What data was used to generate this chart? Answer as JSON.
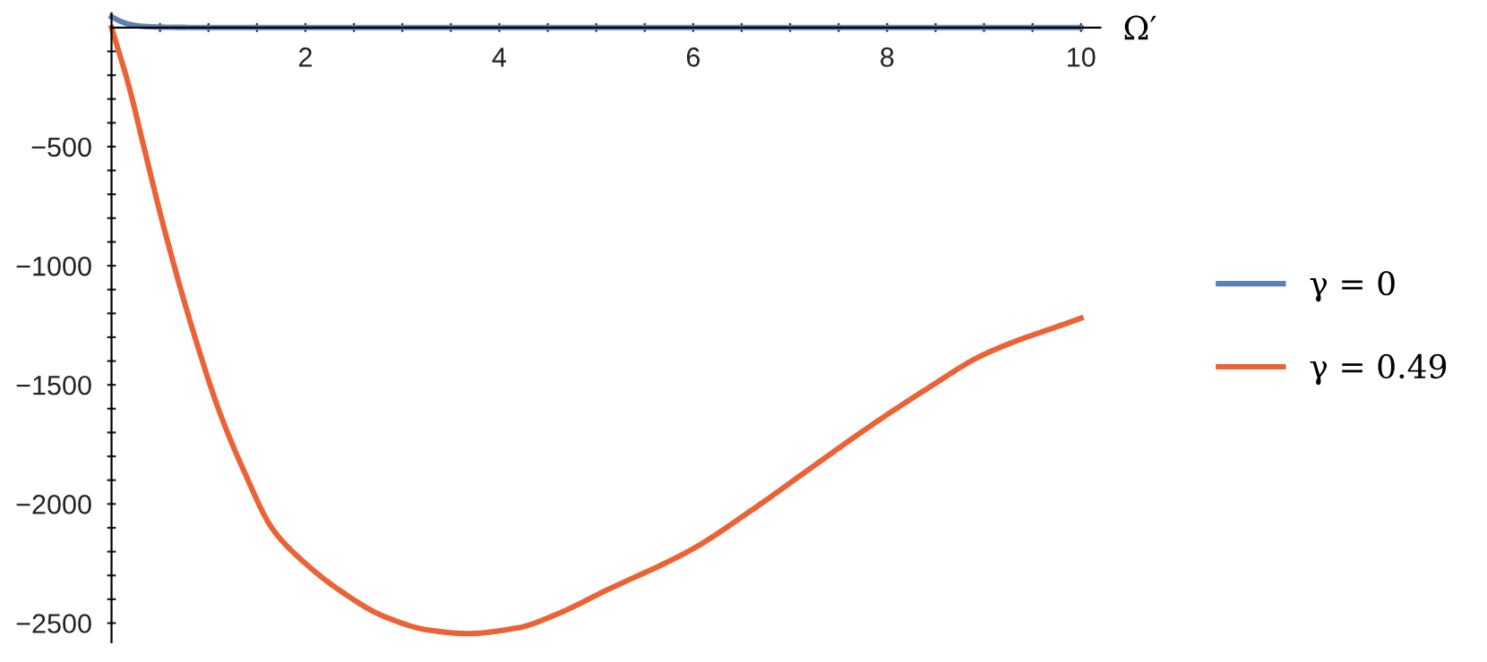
{
  "chart_data": {
    "type": "line",
    "xlabel": "Ω′",
    "xlim": [
      0,
      10.2
    ],
    "ylim": [
      -2580,
      60
    ],
    "xticks": [
      {
        "value": 0.5,
        "label": null
      },
      {
        "value": 1,
        "label": null
      },
      {
        "value": 1.5,
        "label": null
      },
      2,
      {
        "value": 2.5,
        "label": null
      },
      {
        "value": 3,
        "label": null
      },
      {
        "value": 3.5,
        "label": null
      },
      4,
      {
        "value": 4.5,
        "label": null
      },
      {
        "value": 5,
        "label": null
      },
      {
        "value": 5.5,
        "label": null
      },
      6,
      {
        "value": 6.5,
        "label": null
      },
      {
        "value": 7,
        "label": null
      },
      {
        "value": 7.5,
        "label": null
      },
      8,
      {
        "value": 8.5,
        "label": null
      },
      {
        "value": 9,
        "label": null
      },
      {
        "value": 9.5,
        "label": null
      },
      10
    ],
    "yticks": [
      {
        "value": -100,
        "label": null
      },
      {
        "value": -200,
        "label": null
      },
      {
        "value": -300,
        "label": null
      },
      {
        "value": -400,
        "label": null
      },
      {
        "value": -500,
        "label": "−500"
      },
      {
        "value": -600,
        "label": null
      },
      {
        "value": -700,
        "label": null
      },
      {
        "value": -800,
        "label": null
      },
      {
        "value": -900,
        "label": null
      },
      {
        "value": -1000,
        "label": "−1000"
      },
      {
        "value": -1100,
        "label": null
      },
      {
        "value": -1200,
        "label": null
      },
      {
        "value": -1300,
        "label": null
      },
      {
        "value": -1400,
        "label": null
      },
      {
        "value": -1500,
        "label": "−1500"
      },
      {
        "value": -1600,
        "label": null
      },
      {
        "value": -1700,
        "label": null
      },
      {
        "value": -1800,
        "label": null
      },
      {
        "value": -1900,
        "label": null
      },
      {
        "value": -2000,
        "label": "−2000"
      },
      {
        "value": -2100,
        "label": null
      },
      {
        "value": -2200,
        "label": null
      },
      {
        "value": -2300,
        "label": null
      },
      {
        "value": -2400,
        "label": null
      },
      {
        "value": -2500,
        "label": "−2500"
      }
    ],
    "grid": false,
    "legend": "right",
    "marker": "none",
    "line_style": "solid",
    "series": [
      {
        "name": "γ = 0",
        "color": "#5e81b5",
        "x": [
          0,
          0.1,
          0.2,
          0.35,
          0.6,
          1,
          10
        ],
        "values": [
          45,
          25,
          12,
          4,
          1,
          0,
          0
        ]
      },
      {
        "name": "γ = 0.49",
        "color": "#eb6235",
        "x": [
          0,
          0.18,
          0.33,
          0.51,
          0.69,
          0.87,
          1.11,
          1.36,
          1.66,
          1.96,
          2.38,
          2.8,
          3.28,
          3.67,
          4.19,
          4.61,
          5.09,
          5.99,
          6.59,
          7.19,
          7.79,
          8.39,
          8.99,
          10
        ],
        "values": [
          0,
          -247,
          -495,
          -792,
          -1064,
          -1312,
          -1609,
          -1856,
          -2104,
          -2235,
          -2370,
          -2470,
          -2530,
          -2544,
          -2520,
          -2460,
          -2365,
          -2190,
          -2030,
          -1856,
          -1683,
          -1522,
          -1374,
          -1220
        ]
      }
    ]
  }
}
